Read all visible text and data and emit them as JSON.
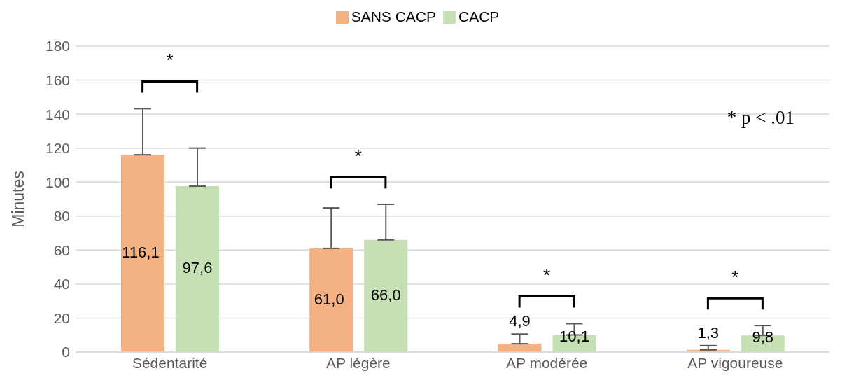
{
  "chart_data": {
    "type": "bar",
    "ylabel": "Minutes",
    "categories": [
      "Sédentarité",
      "AP légère",
      "AP modérée",
      "AP vigoureuse"
    ],
    "series": [
      {
        "name": "SANS CACP",
        "color": "#f4b183",
        "values": [
          116.1,
          61.0,
          4.9,
          1.3
        ],
        "value_labels": [
          "116,1",
          "61,0",
          "4,9",
          "1,3"
        ],
        "errors": [
          [
            116.1,
            143.2
          ],
          [
            61.0,
            84.8
          ],
          [
            4.9,
            10.6
          ],
          [
            1.3,
            3.8
          ]
        ]
      },
      {
        "name": "CACP",
        "color": "#c5e0b4",
        "values": [
          97.6,
          66.0,
          10.1,
          9.8
        ],
        "value_labels": [
          "97,6",
          "66,0",
          "10,1",
          "9,8"
        ],
        "errors": [
          [
            97.6,
            120.0
          ],
          [
            66.0,
            86.9
          ],
          [
            10.1,
            16.7
          ],
          [
            9.8,
            15.6
          ]
        ]
      }
    ],
    "ylim": [
      0,
      180
    ],
    "yticks": [
      0,
      20,
      40,
      60,
      80,
      100,
      120,
      140,
      160,
      180
    ],
    "grid": "y",
    "legend": "top",
    "annotations": [
      "*",
      "*",
      "*",
      "*",
      "* p < .01"
    ]
  }
}
